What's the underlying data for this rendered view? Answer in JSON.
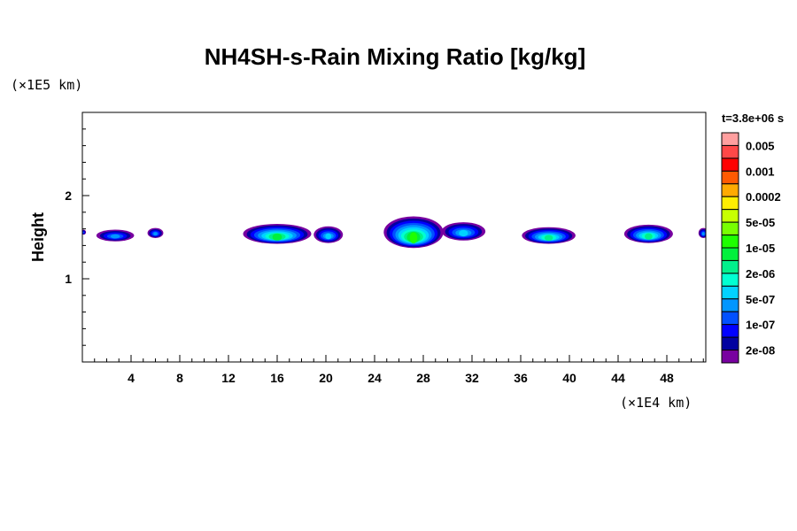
{
  "chart_data": {
    "type": "heatmap",
    "title": "NH4SH-s-Rain Mixing Ratio [kg/kg]",
    "xlabel": "",
    "x_unit": "(×1E4 km)",
    "ylabel": "Height",
    "y_unit": "(×1E5 km)",
    "time_label": "t=3.8e+06 s",
    "xlim": [
      0,
      51.2
    ],
    "ylim": [
      0,
      3.0
    ],
    "x_ticks": [
      "4",
      "8",
      "12",
      "16",
      "20",
      "24",
      "28",
      "32",
      "36",
      "40",
      "44",
      "48"
    ],
    "x_tick_values": [
      4,
      8,
      12,
      16,
      20,
      24,
      28,
      32,
      36,
      40,
      44,
      48
    ],
    "y_ticks": [
      "1",
      "2"
    ],
    "y_tick_values": [
      1,
      2
    ],
    "colorbar": {
      "colors": [
        "#ff9f9f",
        "#ff4848",
        "#ff0000",
        "#ff5a00",
        "#ffaa00",
        "#ffee00",
        "#c8ff00",
        "#78ff00",
        "#1eff00",
        "#00f03c",
        "#00f08c",
        "#00ffd2",
        "#00d2ff",
        "#0096ff",
        "#0050ff",
        "#0000ff",
        "#0000a0",
        "#7800a0"
      ],
      "labels": [
        "0.005",
        "0.001",
        "0.0002",
        "5e-05",
        "1e-05",
        "2e-06",
        "5e-07",
        "1e-07",
        "2e-08"
      ]
    },
    "features": [
      {
        "x": 0.1,
        "y": 1.56,
        "w": 0.4,
        "h": 0.06,
        "max_level": 3
      },
      {
        "x": 2.7,
        "y": 1.52,
        "w": 3.1,
        "h": 0.14,
        "max_level": 4
      },
      {
        "x": 6.0,
        "y": 1.55,
        "w": 1.3,
        "h": 0.12,
        "max_level": 4
      },
      {
        "x": 16.0,
        "y": 1.54,
        "w": 5.6,
        "h": 0.24,
        "max_level": 8
      },
      {
        "x": 20.2,
        "y": 1.53,
        "w": 2.4,
        "h": 0.2,
        "max_level": 5
      },
      {
        "x": 27.2,
        "y": 1.56,
        "w": 4.9,
        "h": 0.38,
        "max_level": 9
      },
      {
        "x": 31.3,
        "y": 1.57,
        "w": 3.6,
        "h": 0.22,
        "max_level": 5
      },
      {
        "x": 38.3,
        "y": 1.52,
        "w": 4.4,
        "h": 0.2,
        "max_level": 7
      },
      {
        "x": 46.5,
        "y": 1.54,
        "w": 4.0,
        "h": 0.22,
        "max_level": 7
      },
      {
        "x": 51.0,
        "y": 1.55,
        "w": 0.8,
        "h": 0.12,
        "max_level": 4
      }
    ]
  }
}
